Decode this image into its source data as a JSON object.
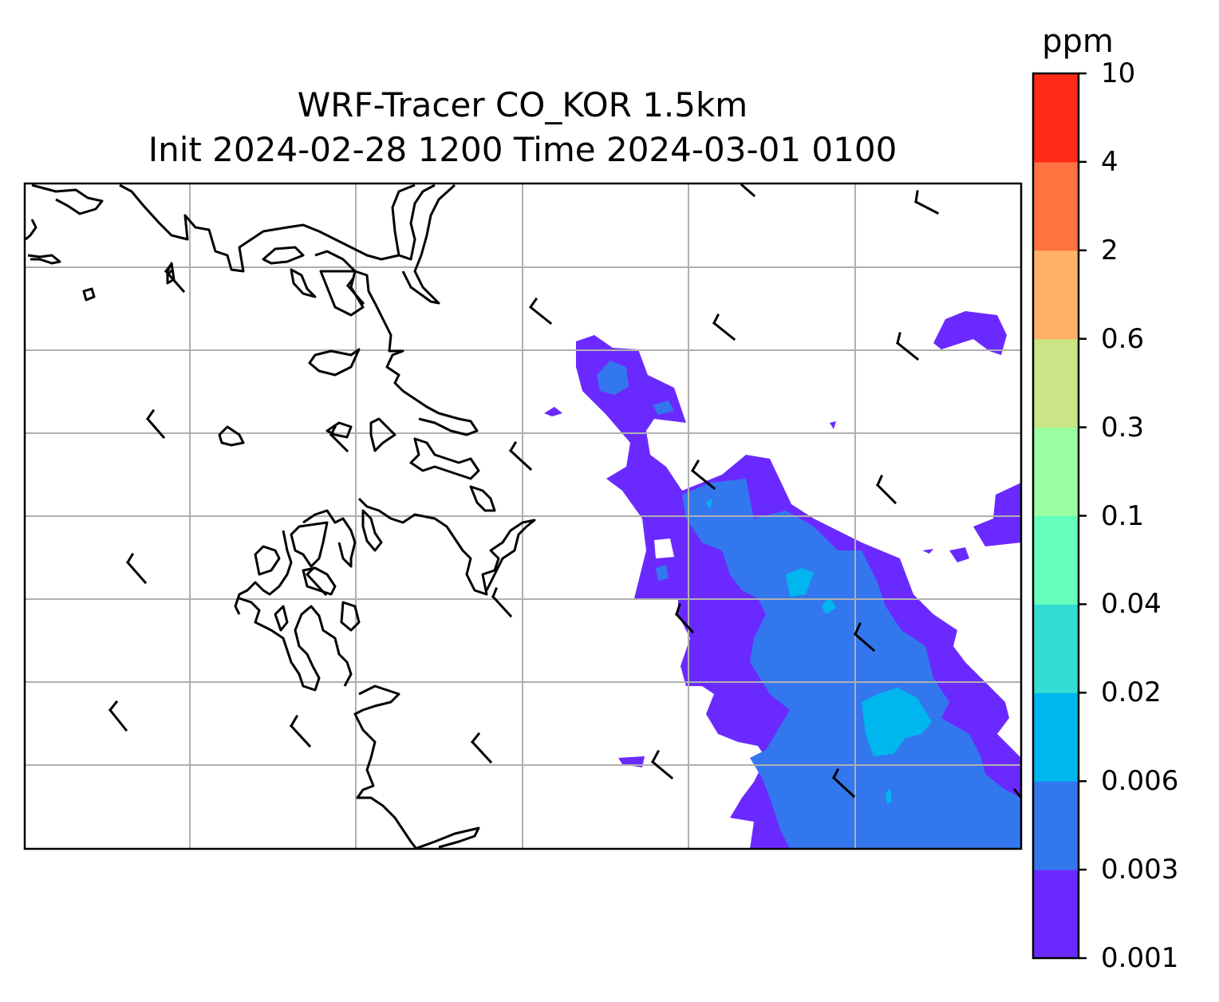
{
  "title": {
    "line1": "WRF-Tracer CO_KOR 1.5km",
    "line2": "Init 2024-02-28 1200 Time 2024-03-01 0100"
  },
  "colorbar": {
    "unit": "ppm",
    "levels": [
      "0.001",
      "0.003",
      "0.006",
      "0.02",
      "0.04",
      "0.1",
      "0.3",
      "0.6",
      "2",
      "4",
      "10"
    ],
    "colors": [
      "#6a2aff",
      "#3377ee",
      "#00b6ee",
      "#33ddd3",
      "#66ffbb",
      "#99ffa0",
      "#cce386",
      "#ffb265",
      "#ff7341",
      "#ff2a17"
    ]
  },
  "map": {
    "gridlines": true,
    "coastline_color": "#000000",
    "frame_color": "#000000",
    "grid_color": "#b0b0b0"
  },
  "chart_data": {
    "type": "heatmap",
    "title": "WRF-Tracer CO_KOR 1.5km\nInit 2024-02-28 1200 Time 2024-03-01 0100",
    "colorbar_label": "ppm",
    "levels": [
      0.001,
      0.003,
      0.006,
      0.02,
      0.04,
      0.1,
      0.3,
      0.6,
      2,
      4,
      10
    ],
    "grid": true
  }
}
